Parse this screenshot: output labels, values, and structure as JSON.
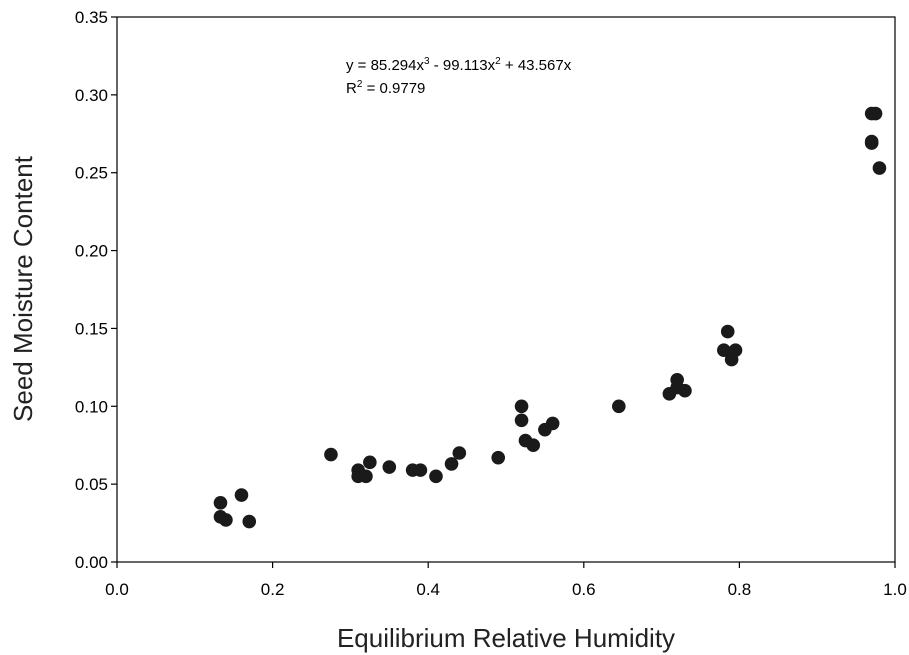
{
  "chart_data": {
    "type": "scatter",
    "xlabel": "Equilibrium Relative Humidity",
    "ylabel": "Seed Moisture Content",
    "xlim": [
      0.0,
      1.0
    ],
    "ylim": [
      0.0,
      0.35
    ],
    "x_ticks": [
      "0.0",
      "0.2",
      "0.4",
      "0.6",
      "0.8",
      "1.0"
    ],
    "y_ticks": [
      "0.00",
      "0.05",
      "0.10",
      "0.15",
      "0.20",
      "0.25",
      "0.30",
      "0.35"
    ],
    "grid": false,
    "legend": "none",
    "marker_color": "#1a1a1a",
    "series": [
      {
        "values": [
          [
            0.133,
            0.038
          ],
          [
            0.133,
            0.029
          ],
          [
            0.14,
            0.027
          ],
          [
            0.16,
            0.043
          ],
          [
            0.17,
            0.026
          ],
          [
            0.275,
            0.069
          ],
          [
            0.31,
            0.059
          ],
          [
            0.31,
            0.055
          ],
          [
            0.32,
            0.055
          ],
          [
            0.325,
            0.064
          ],
          [
            0.35,
            0.061
          ],
          [
            0.38,
            0.059
          ],
          [
            0.39,
            0.059
          ],
          [
            0.41,
            0.055
          ],
          [
            0.43,
            0.063
          ],
          [
            0.44,
            0.07
          ],
          [
            0.49,
            0.067
          ],
          [
            0.52,
            0.1
          ],
          [
            0.52,
            0.091
          ],
          [
            0.525,
            0.078
          ],
          [
            0.535,
            0.075
          ],
          [
            0.55,
            0.085
          ],
          [
            0.56,
            0.089
          ],
          [
            0.645,
            0.1
          ],
          [
            0.71,
            0.108
          ],
          [
            0.72,
            0.117
          ],
          [
            0.72,
            0.112
          ],
          [
            0.73,
            0.11
          ],
          [
            0.78,
            0.136
          ],
          [
            0.785,
            0.148
          ],
          [
            0.79,
            0.13
          ],
          [
            0.795,
            0.136
          ],
          [
            0.97,
            0.288
          ],
          [
            0.97,
            0.27
          ],
          [
            0.97,
            0.269
          ],
          [
            0.975,
            0.288
          ],
          [
            0.98,
            0.253
          ]
        ]
      }
    ],
    "fit": {
      "type": "polynomial",
      "coefficients": {
        "a3": 85.294,
        "a2": -99.113,
        "a1": 43.567
      },
      "x_range": [
        0.133,
        0.975
      ],
      "equation": {
        "prefix": "y = 85.294x",
        "sup1": "3",
        "mid": " - 99.113x",
        "sup2": "2",
        "suffix": " + 43.567x"
      },
      "r2": {
        "prefix": "R",
        "sup": "2",
        "suffix": " = 0.9779"
      }
    }
  }
}
